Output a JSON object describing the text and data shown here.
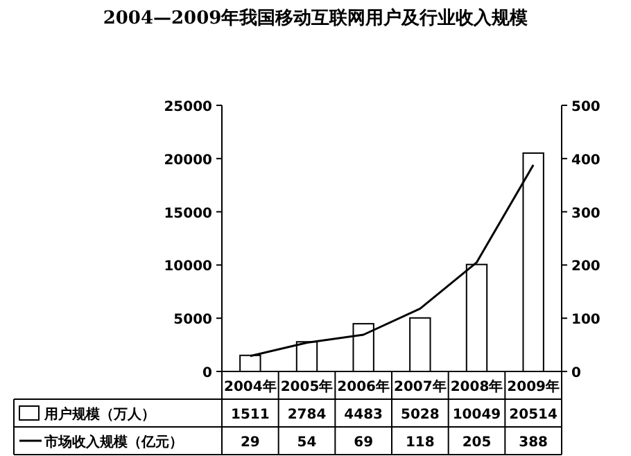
{
  "chart_data": {
    "type": "bar",
    "title": "2004—2009年我国移动互联网用户及行业收入规模",
    "categories": [
      "2004年",
      "2005年",
      "2006年",
      "2007年",
      "2008年",
      "2009年"
    ],
    "series": [
      {
        "name": "用户规模（万人）",
        "color": "#ffffff",
        "values": [
          1511,
          2784,
          4483,
          5028,
          10049,
          20514
        ]
      },
      {
        "name": "市场收入规模（亿元）",
        "type": "line",
        "axis": "y2",
        "color": "#000000",
        "values": [
          29,
          54,
          69,
          118,
          205,
          388
        ]
      }
    ],
    "ylim": [
      0,
      25000
    ],
    "yticks": [
      0,
      5000,
      10000,
      15000,
      20000,
      25000
    ],
    "y2lim": [
      0,
      500
    ],
    "y2ticks": [
      0,
      100,
      200,
      300,
      400,
      500
    ],
    "data_labels": true,
    "legend": "bottom",
    "grid": false,
    "marker": "none"
  }
}
